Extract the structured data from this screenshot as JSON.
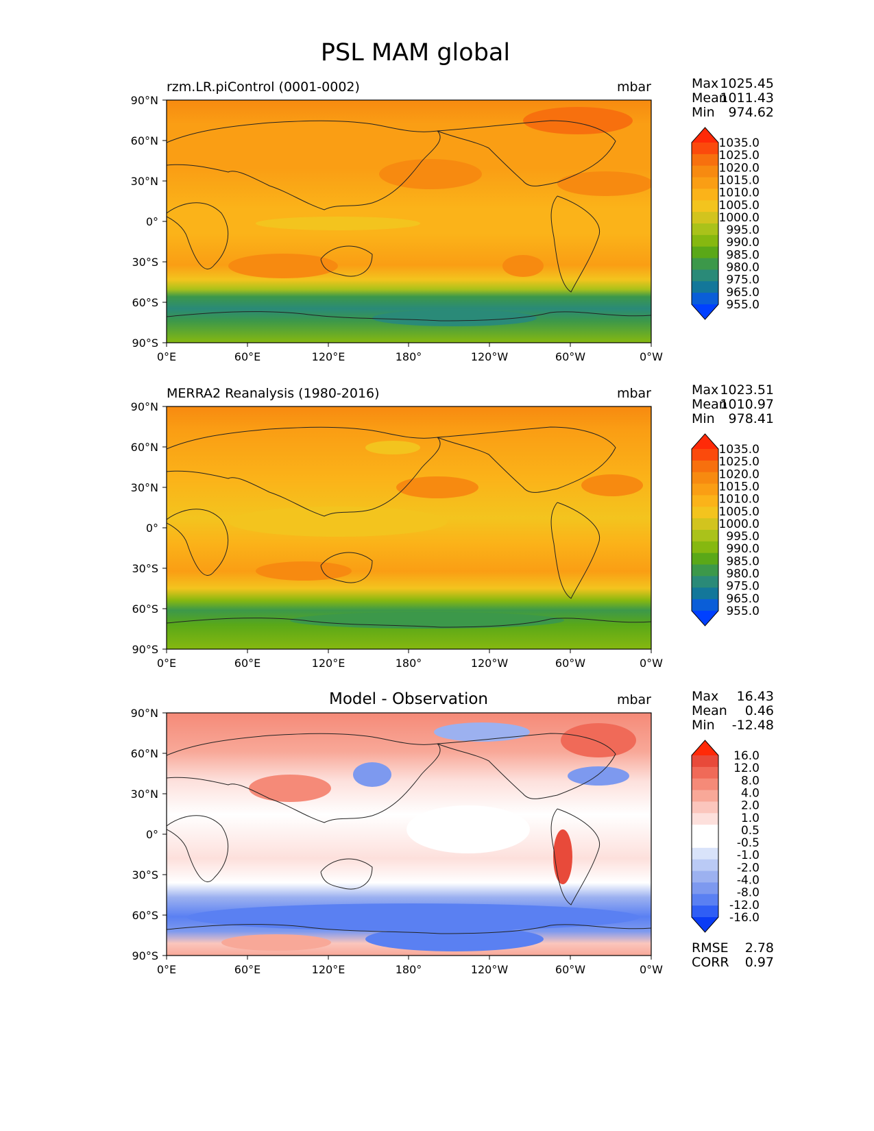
{
  "figure": {
    "title": "PSL MAM global",
    "lat_ticks": [
      "90°N",
      "60°N",
      "30°N",
      "0°",
      "30°S",
      "60°S",
      "90°S"
    ],
    "lon_ticks": [
      "0°E",
      "60°E",
      "120°E",
      "180°",
      "120°W",
      "60°W",
      "0°W"
    ]
  },
  "colors": {
    "psl_levels": [
      "#0040ff",
      "#0a5ed8",
      "#13779a",
      "#2a8a78",
      "#3c984a",
      "#5aa818",
      "#86b810",
      "#aac21a",
      "#d2c41e",
      "#f3c41e",
      "#fbb319",
      "#fa9e14",
      "#f78a10",
      "#f7700e",
      "#fb4a0c",
      "#ff2a08"
    ],
    "diff_levels": [
      "#0a3cf5",
      "#2f5ef5",
      "#5a80f2",
      "#7d99ef",
      "#9cb1f0",
      "#bacaf5",
      "#d9e3fa",
      "#ffffff",
      "#ffffff",
      "#fde0dc",
      "#fbc6bd",
      "#f8a898",
      "#f58a78",
      "#f06a58",
      "#e84a3a",
      "#ff2a08"
    ]
  },
  "panels": [
    {
      "title_left": "rzm.LR.piControl (0001-0002)",
      "title_center": "",
      "units": "mbar",
      "stats": {
        "max_label": "Max",
        "max_value": "1025.45",
        "mean_label": "Mean",
        "mean_value": "1011.43",
        "min_label": "Min",
        "min_value": "974.62"
      },
      "colorbar_labels": [
        "1035.0",
        "1025.0",
        "1020.0",
        "1015.0",
        "1010.0",
        "1005.0",
        "1000.0",
        "995.0",
        "990.0",
        "985.0",
        "980.0",
        "975.0",
        "965.0",
        "955.0"
      ]
    },
    {
      "title_left": "MERRA2 Reanalysis (1980-2016)",
      "title_center": "",
      "units": "mbar",
      "stats": {
        "max_label": "Max",
        "max_value": "1023.51",
        "mean_label": "Mean",
        "mean_value": "1010.97",
        "min_label": "Min",
        "min_value": "978.41"
      },
      "colorbar_labels": [
        "1035.0",
        "1025.0",
        "1020.0",
        "1015.0",
        "1010.0",
        "1005.0",
        "1000.0",
        "995.0",
        "990.0",
        "985.0",
        "980.0",
        "975.0",
        "965.0",
        "955.0"
      ]
    },
    {
      "title_left": "",
      "title_center": "Model - Observation",
      "units": "mbar",
      "stats": {
        "max_label": "Max",
        "max_value": "16.43",
        "mean_label": "Mean",
        "mean_value": "0.46",
        "min_label": "Min",
        "min_value": "-12.48"
      },
      "colorbar_labels": [
        "16.0",
        "12.0",
        "8.0",
        "4.0",
        "2.0",
        "1.0",
        "0.5",
        "-0.5",
        "-1.0",
        "-2.0",
        "-4.0",
        "-8.0",
        "-12.0",
        "-16.0"
      ],
      "rmse_label": "RMSE",
      "rmse_value": "2.78",
      "corr_label": "CORR",
      "corr_value": "0.97"
    }
  ]
}
